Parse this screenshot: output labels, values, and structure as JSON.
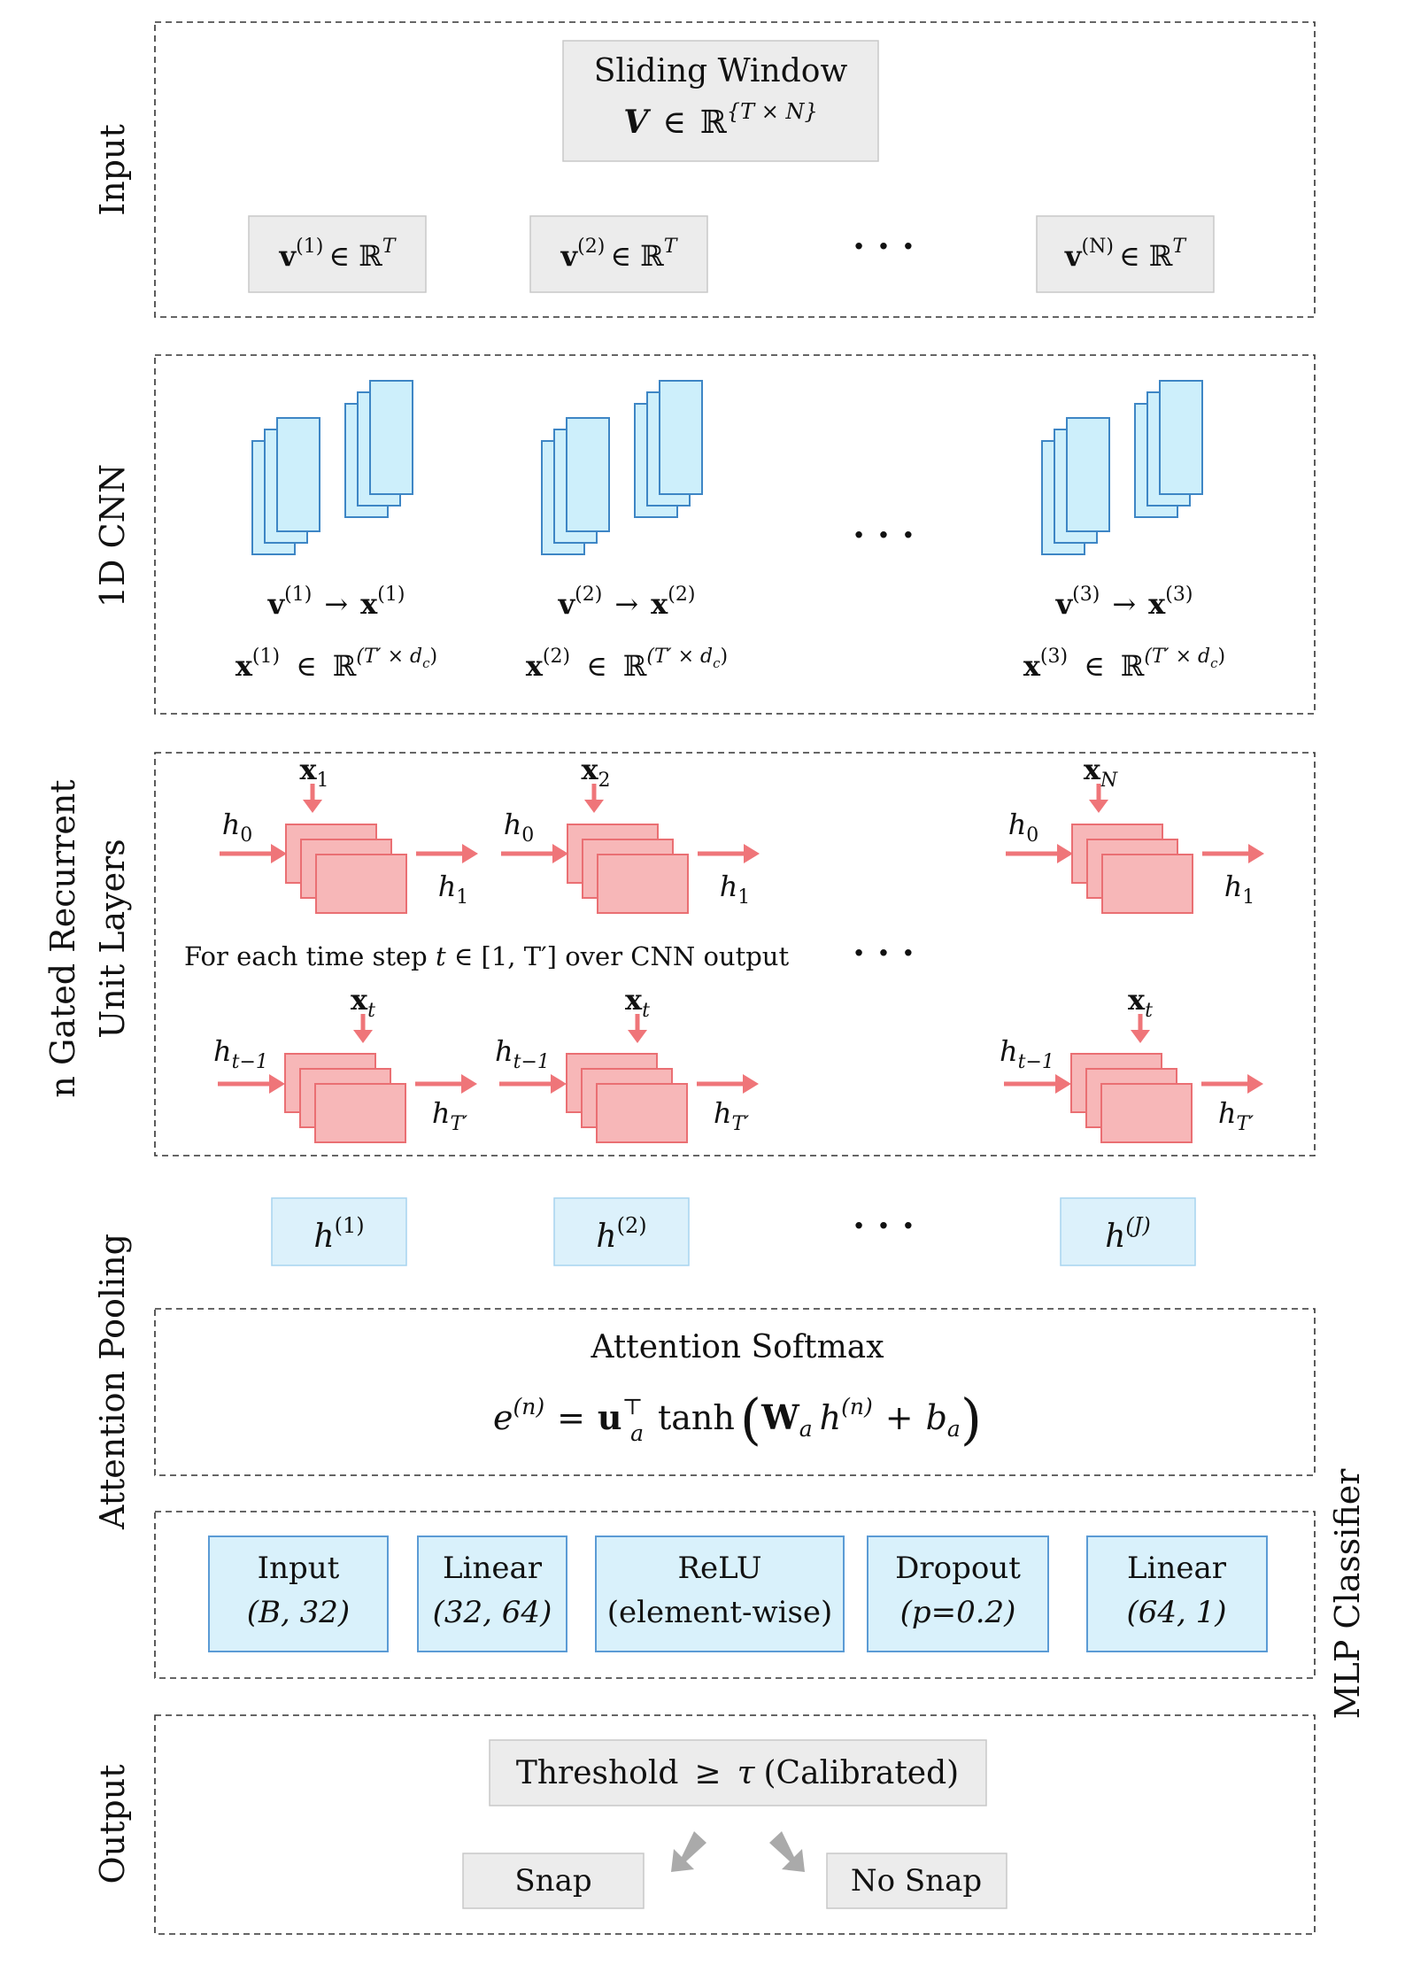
{
  "colors": {
    "blue_fill": "#cdeffb",
    "blue_stroke": "#3e86c5",
    "red_fill": "#f7b7b8",
    "red_stroke": "#ea6f73",
    "red_arrow": "#ef7579",
    "gray_fill": "#ececec",
    "gray_arrow": "#aaaaaa"
  },
  "sections": {
    "input": "Input",
    "cnn": "1D CNN",
    "gru_line1": "n Gated Recurrent",
    "gru_line2": "Unit Layers",
    "attention": "Attention Pooling",
    "mlp": "MLP Classifier",
    "output": "Output"
  },
  "input": {
    "sliding_title": "Sliding Window",
    "sliding_var": "V",
    "sliding_in": "∈",
    "sliding_set": "ℝ",
    "sliding_dims": "{T × N}",
    "channels": [
      {
        "v": "v",
        "sup": "(1)",
        "rel": "∈ ℝ",
        "dim": "T"
      },
      {
        "v": "v",
        "sup": "(2)",
        "rel": "∈ ℝ",
        "dim": "T"
      },
      {
        "v": "v",
        "sup": "(N)",
        "rel": "∈ ℝ",
        "dim": "T"
      }
    ],
    "ellipsis": "· · ·"
  },
  "cnn": {
    "groups": [
      {
        "v": "v",
        "vsup": "(1)",
        "arrow": "→",
        "x": "x",
        "xsup": "(1)",
        "x2": "x",
        "x2sup": "(1)",
        "in": "∈",
        "set": "ℝ",
        "dims": "(T′ × d"
      },
      {
        "v": "v",
        "vsup": "(2)",
        "arrow": "→",
        "x": "x",
        "xsup": "(2)",
        "x2": "x",
        "x2sup": "(2)",
        "in": "∈",
        "set": "ℝ",
        "dims": "(T′ × d"
      },
      {
        "v": "v",
        "vsup": "(3)",
        "arrow": "→",
        "x": "x",
        "xsup": "(3)",
        "x2": "x",
        "x2sup": "(3)",
        "in": "∈",
        "set": "ℝ",
        "dims": "(T′ × d"
      }
    ],
    "dims_sub": "c",
    "dims_close": ")",
    "ellipsis": "· · ·"
  },
  "gru": {
    "top": [
      {
        "x": "x",
        "xsub": "1",
        "hin": "h",
        "hin_sub": "0",
        "hout": "h",
        "hout_sub": "1"
      },
      {
        "x": "x",
        "xsub": "2",
        "hin": "h",
        "hin_sub": "0",
        "hout": "h",
        "hout_sub": "1"
      },
      {
        "x": "x",
        "xsub": "N",
        "hin": "h",
        "hin_sub": "0",
        "hout": "h",
        "hout_sub": "1"
      }
    ],
    "bottom": [
      {
        "x": "x",
        "xsub": "t",
        "hin": "h",
        "hin_sub": "t−1",
        "hout": "h",
        "hout_sub": "T′"
      },
      {
        "x": "x",
        "xsub": "t",
        "hin": "h",
        "hin_sub": "t−1",
        "hout": "h",
        "hout_sub": "T′"
      },
      {
        "x": "x",
        "xsub": "t",
        "hin": "h",
        "hin_sub": "t−1",
        "hout": "h",
        "hout_sub": "T′"
      }
    ],
    "caption_pre": "For each time step ",
    "caption_var": "t",
    "caption_in": " ∈ ",
    "caption_range": "[1, T′]",
    "caption_post": " over CNN output",
    "ellipsis": "· · ·"
  },
  "hidden": {
    "states": [
      {
        "h": "h",
        "sup": "(1)"
      },
      {
        "h": "h",
        "sup": "(2)"
      },
      {
        "h": "h",
        "sup": "(J)"
      }
    ],
    "ellipsis": "· · ·"
  },
  "attention": {
    "title": "Attention Softmax",
    "e": "e",
    "e_sup": "(n)",
    "eq": "=",
    "u": "u",
    "u_sup": "⊤",
    "u_sub": "a",
    "tanh": "tanh",
    "lparen": "(",
    "W": "W",
    "W_sub": "a",
    "h": "h",
    "h_sup": "(n)",
    "plus": "+",
    "b": "b",
    "b_sub": "a",
    "rparen": ")"
  },
  "mlp": {
    "layers": [
      {
        "name": "Input",
        "detail": "(B, 32)"
      },
      {
        "name": "Linear",
        "detail": "(32, 64)"
      },
      {
        "name": "ReLU",
        "detail": "(element-wise)"
      },
      {
        "name": "Dropout",
        "detail": "(p=0.2)"
      },
      {
        "name": "Linear",
        "detail": "(64, 1)"
      }
    ]
  },
  "output": {
    "threshold_pre": "Threshold",
    "threshold_ge": "≥",
    "threshold_tau": "τ",
    "threshold_post": "(Calibrated)",
    "snap": "Snap",
    "no_snap": "No Snap"
  }
}
